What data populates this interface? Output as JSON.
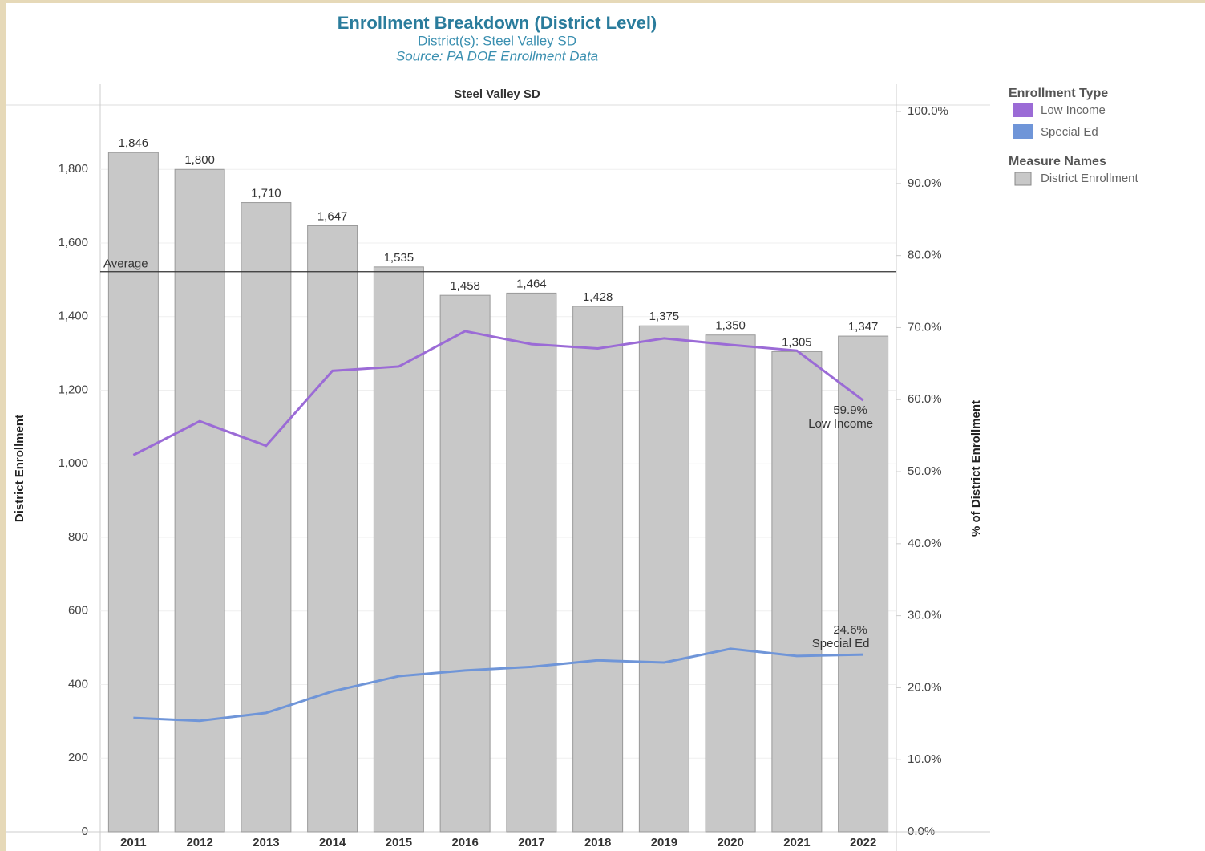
{
  "chart_data": {
    "type": "bar",
    "title": "Enrollment Breakdown (District Level)",
    "subtitle": "District(s): Steel Valley SD",
    "source": "Source: PA DOE Enrollment Data",
    "panel_title": "Steel Valley SD",
    "ylabel": "District Enrollment",
    "y2label": "% of District Enrollment",
    "categories": [
      "2011",
      "2012",
      "2013",
      "2014",
      "2015",
      "2016",
      "2017",
      "2018",
      "2019",
      "2020",
      "2021",
      "2022"
    ],
    "bars": {
      "name": "District Enrollment",
      "color": "#c8c8c8",
      "values": [
        1846,
        1800,
        1710,
        1647,
        1535,
        1458,
        1464,
        1428,
        1375,
        1350,
        1305,
        1347
      ],
      "value_labels": [
        "1,846",
        "1,800",
        "1,710",
        "1,647",
        "1,535",
        "1,458",
        "1,464",
        "1,428",
        "1,375",
        "1,350",
        "1,305",
        "1,347"
      ]
    },
    "reference_line": {
      "label": "Average",
      "value": 1522.1
    },
    "series": [
      {
        "name": "Low Income",
        "color": "#9b6bd6",
        "type": "line",
        "axis": "y2",
        "values": [
          52.3,
          57.0,
          53.6,
          64.0,
          64.6,
          69.5,
          67.7,
          67.1,
          68.5,
          67.6,
          66.8,
          59.9
        ],
        "end_label": "59.9%"
      },
      {
        "name": "Special Ed",
        "color": "#6f95d8",
        "type": "line",
        "axis": "y2",
        "values": [
          15.8,
          15.4,
          16.5,
          19.5,
          21.6,
          22.4,
          22.9,
          23.8,
          23.5,
          25.4,
          24.4,
          24.6
        ],
        "end_label": "24.6%"
      }
    ],
    "legend_title": "Enrollment Type",
    "bar_legend_title": "Measure Names",
    "ylim": [
      0,
      1975
    ],
    "yticks": [
      0,
      200,
      400,
      600,
      800,
      {
        "value": 1000,
        "label": "1,000"
      },
      {
        "value": 1200,
        "label": "1,200"
      },
      {
        "value": 1400,
        "label": "1,400"
      },
      {
        "value": 1600,
        "label": "1,600"
      },
      {
        "value": 1800,
        "label": "1,800"
      }
    ],
    "y2lim": [
      0,
      100.9
    ],
    "y2ticks": [
      {
        "value": 0,
        "label": "0.0%"
      },
      {
        "value": 10,
        "label": "10.0%"
      },
      {
        "value": 20,
        "label": "20.0%"
      },
      {
        "value": 30,
        "label": "30.0%"
      },
      {
        "value": 40,
        "label": "40.0%"
      },
      {
        "value": 50,
        "label": "50.0%"
      },
      {
        "value": 60,
        "label": "60.0%"
      },
      {
        "value": 70,
        "label": "70.0%"
      },
      {
        "value": 80,
        "label": "80.0%"
      },
      {
        "value": 90,
        "label": "90.0%"
      },
      {
        "value": 100,
        "label": "100.0%"
      }
    ],
    "grid": true
  }
}
